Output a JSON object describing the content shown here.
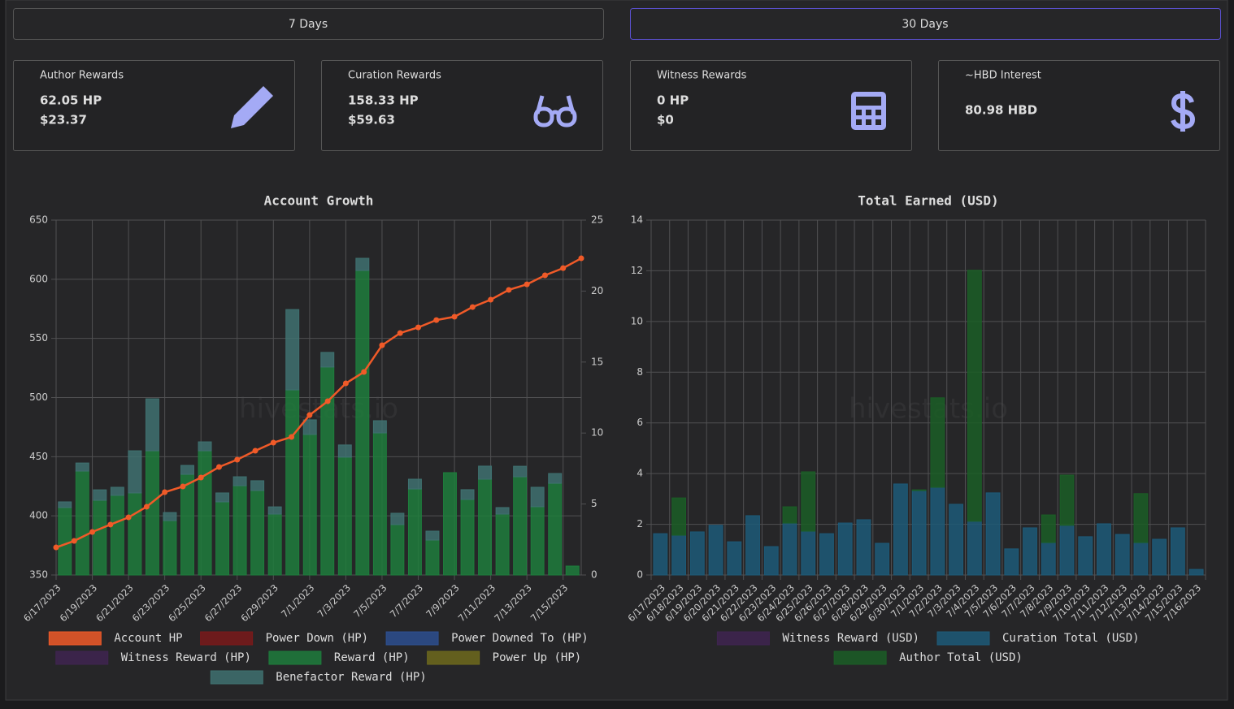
{
  "tabs": [
    "7 Days",
    "30 Days"
  ],
  "cards": [
    {
      "title": "Author Rewards",
      "lines": [
        "62.05 HP",
        "$23.37"
      ]
    },
    {
      "title": "Curation Rewards",
      "lines": [
        "158.33 HP",
        "$59.63"
      ]
    },
    {
      "title": "Witness Rewards",
      "lines": [
        "0 HP",
        "$0"
      ]
    },
    {
      "title": "~HBD Interest",
      "lines": [
        "80.98 HBD"
      ]
    }
  ],
  "watermark": "hivestats.io",
  "chart_data": [
    {
      "type": "combo",
      "title": "Account Growth",
      "categories": [
        "6/17/2023",
        null,
        "6/19/2023",
        null,
        "6/21/2023",
        null,
        "6/23/2023",
        null,
        "6/25/2023",
        null,
        "6/27/2023",
        null,
        "6/29/2023",
        null,
        "7/1/2023",
        null,
        "7/3/2023",
        null,
        "7/5/2023",
        null,
        "7/7/2023",
        null,
        "7/9/2023",
        null,
        "7/11/2023",
        null,
        "7/13/2023",
        null,
        "7/15/2023",
        null
      ],
      "ylim": [
        350,
        650
      ],
      "yticks": [
        350,
        400,
        450,
        500,
        550,
        600,
        650
      ],
      "y2lim": [
        0,
        25
      ],
      "y2ticks": [
        0,
        5,
        10,
        15,
        20,
        25
      ],
      "grid": true,
      "series": [
        {
          "name": "Account HP",
          "type": "line",
          "axis": "y",
          "color": "#f05a28",
          "values": [
            373.3,
            378.8,
            386.4,
            392.6,
            398.7,
            407.7,
            420.0,
            424.8,
            432.4,
            441.3,
            447.5,
            455.0,
            461.9,
            466.7,
            485.2,
            496.9,
            512.0,
            521.6,
            544.2,
            554.5,
            559.3,
            565.5,
            568.3,
            576.5,
            582.7,
            591.0,
            595.7,
            603.3,
            609.4,
            617.7
          ]
        },
        {
          "name": "Power Down (HP)",
          "type": "bar",
          "axis": "y2",
          "color": "#7a1a1a",
          "values": [
            0,
            0,
            0,
            0,
            0,
            0,
            0,
            0,
            0,
            0,
            0,
            0,
            0,
            0,
            0,
            0,
            0,
            0,
            0,
            0,
            0,
            0,
            0,
            0,
            0,
            0,
            0,
            0,
            0,
            0
          ]
        },
        {
          "name": "Power Downed To (HP)",
          "type": "bar",
          "axis": "y2",
          "color": "#2d4f8f",
          "values": [
            0,
            0,
            0,
            0,
            0,
            0,
            0,
            0,
            0,
            0,
            0,
            0,
            0,
            0,
            0,
            0,
            0,
            0,
            0,
            0,
            0,
            0,
            0,
            0,
            0,
            0,
            0,
            0,
            0,
            0
          ]
        },
        {
          "name": "Witness Reward (HP)",
          "type": "bar",
          "axis": "y2",
          "color": "#3f2450",
          "values": [
            0,
            0,
            0,
            0,
            0,
            0,
            0,
            0,
            0,
            0,
            0,
            0,
            0,
            0,
            0,
            0,
            0,
            0,
            0,
            0,
            0,
            0,
            0,
            0,
            0,
            0,
            0,
            0,
            0,
            0
          ]
        },
        {
          "name": "Reward (HP)",
          "type": "bar",
          "axis": "y2",
          "color": "#1e7d3c",
          "values": [
            4.75,
            7.32,
            5.26,
            5.61,
            5.78,
            8.75,
            3.83,
            7.09,
            8.75,
            5.15,
            6.29,
            5.95,
            4.29,
            13.04,
            9.9,
            14.65,
            8.3,
            21.45,
            10.01,
            3.55,
            6.06,
            2.46,
            7.21,
            5.32,
            6.75,
            4.29,
            6.92,
            4.81,
            6.46,
            0.63
          ]
        },
        {
          "name": "Power Up (HP)",
          "type": "bar",
          "axis": "y2",
          "color": "#6e6a1c",
          "values": [
            0,
            0,
            0,
            0,
            0,
            0,
            0,
            0,
            0,
            0,
            0,
            0,
            0,
            0,
            0,
            0,
            0,
            0,
            0,
            0,
            0,
            0,
            0,
            0,
            0,
            0,
            0,
            0,
            0,
            0
          ]
        },
        {
          "name": "Benefactor Reward (HP)",
          "type": "bar",
          "axis": "y2",
          "color": "#3f7170",
          "values": [
            0.4,
            0.57,
            0.74,
            0.57,
            2.97,
            3.66,
            0.57,
            0.63,
            0.63,
            0.63,
            0.63,
            0.69,
            0.51,
            5.66,
            1.03,
            1.03,
            0.86,
            0.86,
            0.86,
            0.8,
            0.69,
            0.63,
            0,
            0.69,
            0.92,
            0.46,
            0.74,
            1.37,
            0.69,
            0
          ]
        }
      ]
    },
    {
      "type": "bar",
      "title": "Total Earned (USD)",
      "stacked": true,
      "categories": [
        "6/17/2023",
        "6/18/2023",
        "6/19/2023",
        "6/20/2023",
        "6/21/2023",
        "6/22/2023",
        "6/23/2023",
        "6/24/2023",
        "6/25/2023",
        "6/26/2023",
        "6/27/2023",
        "6/28/2023",
        "6/29/2023",
        "6/30/2023",
        "7/1/2023",
        "7/2/2023",
        "7/3/2023",
        "7/4/2023",
        "7/5/2023",
        "7/6/2023",
        "7/7/2023",
        "7/8/2023",
        "7/9/2023",
        "7/10/2023",
        "7/11/2023",
        "7/12/2023",
        "7/13/2023",
        "7/14/2023",
        "7/15/2023",
        "7/16/2023"
      ],
      "ylim": [
        0,
        14
      ],
      "yticks": [
        0,
        2,
        4,
        6,
        8,
        10,
        12,
        14
      ],
      "grid": true,
      "series": [
        {
          "name": "Witness Reward (USD)",
          "color": "#3f2450",
          "values": [
            0,
            0,
            0,
            0,
            0,
            0,
            0,
            0,
            0,
            0,
            0,
            0,
            0,
            0,
            0,
            0,
            0,
            0,
            0,
            0,
            0,
            0,
            0,
            0,
            0,
            0,
            0,
            0,
            0,
            0
          ]
        },
        {
          "name": "Curation Total (USD)",
          "color": "#1d5a78",
          "values": [
            1.63,
            1.57,
            1.7,
            1.96,
            1.31,
            2.34,
            1.12,
            2.05,
            1.73,
            1.63,
            2.05,
            2.18,
            1.25,
            3.59,
            3.33,
            3.46,
            2.79,
            2.12,
            3.24,
            1.03,
            1.86,
            1.28,
            1.96,
            1.51,
            2.02,
            1.6,
            1.28,
            1.41,
            1.86,
            0.22
          ]
        },
        {
          "name": "Author Total (USD)",
          "color": "#1b5e26",
          "values": [
            0,
            1.47,
            0,
            0,
            0,
            0,
            0,
            0.64,
            2.34,
            0,
            0,
            0,
            0,
            0,
            0.03,
            3.53,
            0,
            9.9,
            0,
            0,
            0,
            1.09,
            1.98,
            0,
            0,
            0,
            1.93,
            0,
            0,
            0
          ]
        }
      ]
    }
  ]
}
